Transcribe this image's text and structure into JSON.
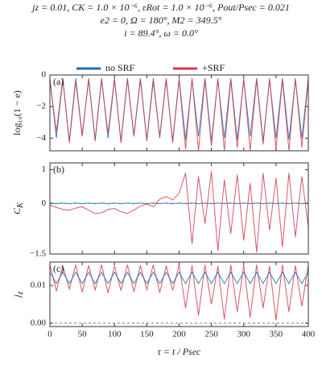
{
  "chart_data": [
    {
      "type": "line",
      "title_lines": [
        "jz = 0.01,   CK = 1.0 × 10⁻⁶,   εRot = 1.0 × 10⁻⁶,   Pout/Psec = 0.021",
        "e2 = 0,   Ω = 180°,   M2 = 349.5°",
        "i = 89.4°,   ω = 0.0°"
      ],
      "panel_label": "(a)",
      "ylabel": "log₁₀(1 − e)",
      "xlim": [
        0,
        400
      ],
      "ylim": [
        -4.8,
        0
      ],
      "yticks": [
        {
          "value": -4,
          "label": "−4"
        },
        {
          "value": -2,
          "label": "−2"
        },
        0
      ],
      "x": [
        0,
        10,
        20,
        30,
        40,
        50,
        60,
        70,
        80,
        90,
        100,
        110,
        120,
        130,
        140,
        150,
        160,
        170,
        180,
        190,
        200,
        210,
        220,
        230,
        240,
        250,
        260,
        270,
        280,
        290,
        300,
        310,
        320,
        330,
        340,
        350,
        360,
        370,
        380,
        390,
        400
      ],
      "series": [
        {
          "name": "no SRF",
          "color": "#1f6fb2",
          "values": [
            -0.2,
            -4.0,
            -0.3,
            -4.2,
            -0.2,
            -3.8,
            -0.3,
            -4.1,
            -0.2,
            -4.0,
            -0.3,
            -4.2,
            -0.2,
            -3.9,
            -0.3,
            -4.1,
            -0.2,
            -4.0,
            -0.3,
            -4.2,
            -0.2,
            -4.1,
            -0.3,
            -3.9,
            -0.2,
            -4.2,
            -0.3,
            -4.0,
            -0.2,
            -4.1,
            -0.3,
            -3.9,
            -0.2,
            -4.2,
            -0.3,
            -4.0,
            -0.2,
            -4.1,
            -0.3,
            -4.0,
            -0.2
          ]
        },
        {
          "name": "+SRF",
          "color": "#d23a4e",
          "values": [
            -0.3,
            -3.6,
            -0.2,
            -4.3,
            -0.4,
            -3.9,
            -0.2,
            -4.2,
            -0.3,
            -3.7,
            -0.2,
            -4.3,
            -0.3,
            -3.8,
            -0.2,
            -4.2,
            -0.4,
            -3.9,
            -0.2,
            -4.3,
            -0.3,
            -4.7,
            -0.2,
            -4.8,
            -0.3,
            -4.5,
            -0.2,
            -4.8,
            -0.3,
            -4.6,
            -0.2,
            -4.8,
            -0.3,
            -4.4,
            -0.2,
            -4.7,
            -0.3,
            -4.8,
            -0.2,
            -4.6,
            -0.3
          ]
        }
      ]
    },
    {
      "type": "line",
      "panel_label": "(b)",
      "ylabel": "C",
      "ylabel_sub": "K",
      "xlim": [
        0,
        400
      ],
      "ylim": [
        -1.5,
        1.2
      ],
      "yticks": [
        {
          "value": -1.5,
          "label": "−1.5"
        },
        0,
        1
      ],
      "zero_line": true,
      "x": [
        0,
        10,
        20,
        30,
        40,
        50,
        60,
        70,
        80,
        90,
        100,
        110,
        120,
        130,
        140,
        150,
        160,
        170,
        180,
        190,
        200,
        210,
        220,
        230,
        240,
        250,
        260,
        270,
        280,
        290,
        300,
        310,
        320,
        330,
        340,
        350,
        360,
        370,
        380,
        390,
        400
      ],
      "series": [
        {
          "color": "#1f6fb2",
          "values": [
            0.01,
            -0.01,
            0.01,
            -0.01,
            0.01,
            -0.01,
            0.01,
            -0.01,
            0.01,
            -0.01,
            0.01,
            -0.01,
            0.01,
            -0.01,
            0.01,
            -0.01,
            0.01,
            -0.01,
            0.01,
            -0.01,
            0.01,
            -0.01,
            0.01,
            -0.01,
            0.01,
            -0.01,
            0.01,
            -0.01,
            0.01,
            -0.01,
            0.01,
            -0.01,
            0.01,
            -0.01,
            0.01,
            -0.01,
            0.01,
            -0.01,
            0.01,
            -0.01,
            0.01
          ]
        },
        {
          "color": "#d23a4e",
          "values": [
            -0.05,
            -0.12,
            -0.18,
            -0.2,
            -0.14,
            -0.1,
            -0.2,
            -0.3,
            -0.28,
            -0.18,
            -0.15,
            -0.25,
            -0.3,
            -0.2,
            -0.08,
            -0.02,
            -0.1,
            0.12,
            0.2,
            0.1,
            0.3,
            0.9,
            -1.2,
            0.8,
            -0.6,
            0.95,
            -1.4,
            0.7,
            -0.9,
            0.85,
            -1.1,
            0.6,
            -1.45,
            0.9,
            -0.8,
            0.75,
            -1.3,
            0.9,
            -1.0,
            0.8,
            -0.7
          ]
        }
      ]
    },
    {
      "type": "line",
      "panel_label": "(c)",
      "ylabel": "j",
      "ylabel_sub": "z",
      "xlabel": "τ = t / Psec",
      "xlim": [
        0,
        400
      ],
      "ylim": [
        -0.0009,
        0.0162
      ],
      "xticks": [
        0,
        50,
        100,
        150,
        200,
        250,
        300,
        350,
        400
      ],
      "yticks": [
        {
          "value": 0,
          "label": "0.00"
        },
        0.01
      ],
      "zero_line": true,
      "x": [
        0,
        10,
        20,
        30,
        40,
        50,
        60,
        70,
        80,
        90,
        100,
        110,
        120,
        130,
        140,
        150,
        160,
        170,
        180,
        190,
        200,
        210,
        220,
        230,
        240,
        250,
        260,
        270,
        280,
        290,
        300,
        310,
        320,
        330,
        340,
        350,
        360,
        370,
        380,
        390,
        400
      ],
      "series": [
        {
          "color": "#d23a4e",
          "values": [
            0.0155,
            0.0085,
            0.0152,
            0.009,
            0.0155,
            0.0082,
            0.0153,
            0.0088,
            0.0155,
            0.008,
            0.0152,
            0.0086,
            0.0155,
            0.0083,
            0.0153,
            0.0089,
            0.0155,
            0.0081,
            0.0152,
            0.0087,
            0.0155,
            0.004,
            0.0153,
            0.002,
            0.0155,
            0.005,
            0.0152,
            0.001,
            0.0155,
            0.003,
            0.0153,
            0.0015,
            0.0155,
            0.004,
            0.0152,
            0.0008,
            0.0155,
            0.003,
            0.0153,
            0.0045,
            0.0155
          ]
        },
        {
          "color": "#1f6fb2",
          "values": [
            0.0135,
            0.0105,
            0.0135,
            0.0105,
            0.0135,
            0.0105,
            0.0135,
            0.0105,
            0.0135,
            0.0105,
            0.0135,
            0.0105,
            0.0135,
            0.0105,
            0.0135,
            0.0105,
            0.0135,
            0.0105,
            0.0135,
            0.0105,
            0.0135,
            0.0105,
            0.0135,
            0.0105,
            0.0135,
            0.0105,
            0.0135,
            0.0105,
            0.0135,
            0.0105,
            0.0135,
            0.0105,
            0.0135,
            0.0105,
            0.0135,
            0.0105,
            0.0135,
            0.0105,
            0.0135,
            0.0105,
            0.0135
          ]
        }
      ]
    }
  ]
}
